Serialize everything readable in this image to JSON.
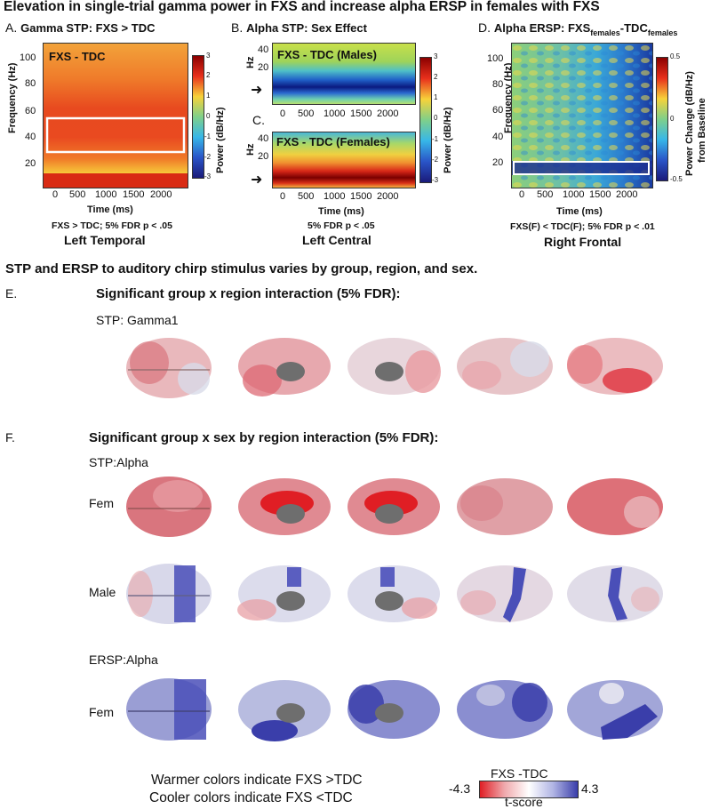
{
  "title": "Elevation in single-trial gamma power in FXS and increase alpha ERSP in females with FXS",
  "panelA": {
    "letter": "A.",
    "heading": "Gamma STP: FXS > TDC",
    "overlay": "FXS - TDC",
    "ylabel": "Frequency (Hz)",
    "xlabel": "Time (ms)",
    "yticks": [
      "100",
      "80",
      "60",
      "40",
      "20"
    ],
    "xticks": [
      "0",
      "500",
      "1000",
      "1500",
      "2000"
    ],
    "stat": "FXS > TDC; 5% FDR p < .05",
    "region": "Left Temporal",
    "cbar_label": "Power (dB/Hz)",
    "cbar_ticks": [
      "3",
      "2",
      "1",
      "0",
      "-1",
      "-2",
      "-3"
    ]
  },
  "panelB": {
    "letter": "B.",
    "heading": "Alpha STP: Sex Effect",
    "overlay": "FXS - TDC (Males)",
    "ylabel": "Hz",
    "yticks": [
      "40",
      "20"
    ],
    "xticks": [
      "0",
      "500",
      "1000",
      "1500",
      "2000"
    ]
  },
  "panelC": {
    "letter": "C.",
    "overlay": "FXS - TDC (Females)",
    "ylabel": "Hz",
    "yticks": [
      "40",
      "20"
    ],
    "xticks": [
      "0",
      "500",
      "1000",
      "1500",
      "2000"
    ],
    "xlabel": "Time (ms)",
    "stat": "5% FDR p < .05",
    "region": "Left Central",
    "cbar_label": "Power (dB/Hz)",
    "cbar_ticks": [
      "3",
      "2",
      "1",
      "0",
      "-1",
      "-2",
      "-3"
    ]
  },
  "panelD": {
    "letter": "D.",
    "heading_main": "Alpha ERSP: FXS",
    "heading_sub1": "females",
    "heading_mid": "-TDC",
    "heading_sub2": "females",
    "ylabel": "Frequency (Hz)",
    "xlabel": "Time (ms)",
    "yticks": [
      "100",
      "80",
      "60",
      "40",
      "20"
    ],
    "xticks": [
      "0",
      "500",
      "1000",
      "1500",
      "2000"
    ],
    "stat": "FXS(F) < TDC(F); 5% FDR p < .01",
    "region": "Right Frontal",
    "cbar_label1": "Power Change (dB/Hz)",
    "cbar_label2": "from Baseline",
    "cbar_ticks": [
      "0.5",
      "0",
      "-0.5"
    ]
  },
  "summary": "STP and ERSP to auditory chirp stimulus varies by group, region, and sex.",
  "sectionE": {
    "letter": "E.",
    "heading": "Significant group x region interaction (5% FDR):",
    "row_label": "STP: Gamma1"
  },
  "sectionF": {
    "letter": "F.",
    "heading": "Significant group x sex by region interaction (5% FDR):",
    "stp_label": "STP:Alpha",
    "fem_label": "Fem",
    "male_label": "Male",
    "ersp_label": "ERSP:Alpha",
    "fem2_label": "Fem"
  },
  "legend": {
    "warm": "Warmer colors indicate FXS >TDC",
    "cool": "Cooler colors indicate FXS <TDC",
    "cbar_title": "FXS -TDC",
    "min": "-4.3",
    "max": "4.3",
    "unit": "t-score"
  },
  "colors": {
    "warm": "#e03030",
    "cool": "#3b3fa8",
    "neutral": "#e8e4e4"
  }
}
